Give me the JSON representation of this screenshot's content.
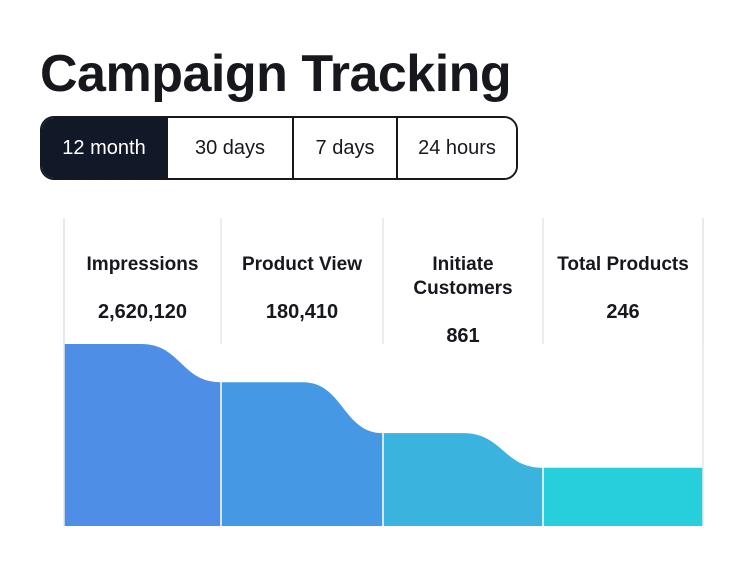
{
  "header": {
    "title": "Campaign Tracking"
  },
  "filters": {
    "selected": "12 month",
    "options": [
      "12 month",
      "30 days",
      "7 days",
      "24 hours"
    ]
  },
  "colors": {
    "stage_1": "#4f8ee6",
    "stage_2": "#4599e4",
    "stage_3": "#3bb3df",
    "stage_4": "#27cfdc",
    "divider": "#e5e7eb",
    "active_filter_bg": "#111827"
  },
  "chart_data": {
    "type": "funnel",
    "title": "Campaign Tracking",
    "period": "12 month",
    "categories": [
      "Impressions",
      "Product View",
      "Initiate Customers",
      "Total Products"
    ],
    "label_lines": [
      [
        "Impressions"
      ],
      [
        "Product View"
      ],
      [
        "Initiate",
        "Customers"
      ],
      [
        "Total Products"
      ]
    ],
    "values": [
      2620120,
      180410,
      861,
      246
    ],
    "value_labels": [
      "2,620,120",
      "180,410",
      "861",
      "246"
    ],
    "relative_level": [
      1.0,
      0.79,
      0.51,
      0.32
    ]
  }
}
